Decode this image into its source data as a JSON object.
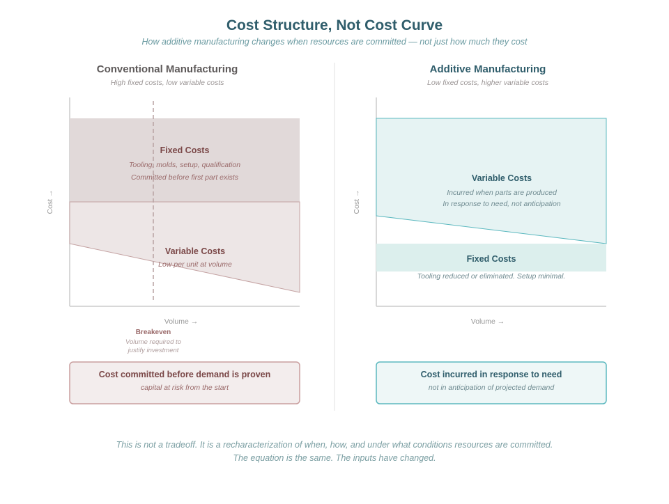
{
  "title": "Cost Structure, Not Cost Curve",
  "subtitle": "How additive manufacturing changes when resources are committed — not just how much they cost",
  "left": {
    "title": "Conventional Manufacturing",
    "subtitle": "High fixed costs, low variable costs",
    "axis_y": "Cost →",
    "axis_x": "Volume →",
    "fixed": {
      "label": "Fixed Costs",
      "line1": "Tooling, molds, setup, qualification",
      "line2": "Committed before first part exists"
    },
    "variable": {
      "label": "Variable Costs",
      "line1": "Low per unit at volume"
    },
    "breakeven": {
      "label": "Breakeven",
      "line1": "Volume required to",
      "line2": "justify investment"
    },
    "callout": {
      "title": "Cost committed before demand is proven",
      "sub": "capital at risk from the start"
    }
  },
  "right": {
    "title": "Additive Manufacturing",
    "subtitle": "Low fixed costs, higher variable costs",
    "axis_y": "Cost →",
    "axis_x": "Volume →",
    "variable": {
      "label": "Variable Costs",
      "line1": "Incurred when parts are produced",
      "line2": "In response to need, not anticipation"
    },
    "fixed": {
      "label": "Fixed Costs",
      "line1": "Tooling reduced or eliminated. Setup minimal."
    },
    "callout": {
      "title": "Cost incurred in response to need",
      "sub": "not in anticipation of projected demand"
    }
  },
  "footer": {
    "line1": "This is not a tradeoff. It is a recharacterization of when, how, and under what conditions resources are committed.",
    "line2": "The equation is the same. The inputs have changed."
  },
  "colors": {
    "conventional_fixed": "#e1d9d9",
    "conventional_variable": "#ede6e6",
    "conventional_stroke": "#c4a2a2",
    "additive_variable": "#e6f3f3",
    "additive_fixed": "#dcefed",
    "additive_stroke": "#5bb8bf"
  }
}
